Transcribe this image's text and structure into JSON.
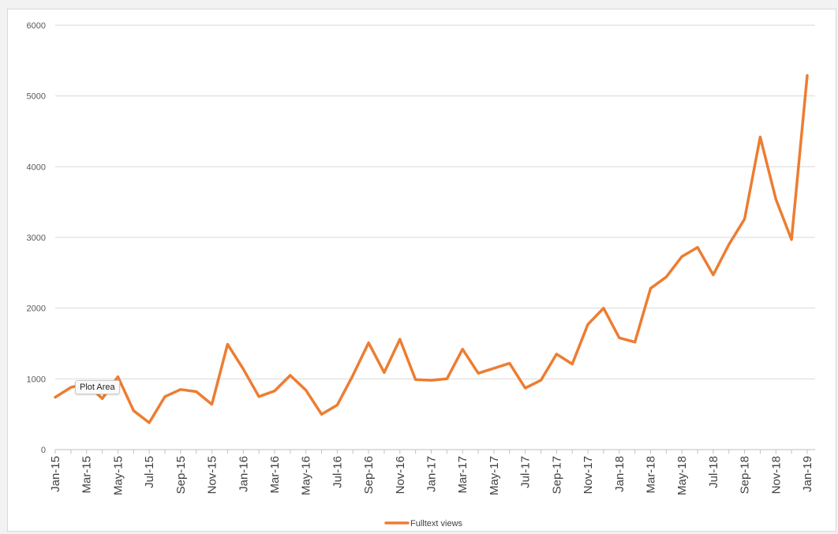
{
  "colors": {
    "line": "#ED7D31",
    "grid": "#d9d9d9",
    "axis": "#bfbfbf"
  },
  "tooltip": {
    "label": "Plot Area"
  },
  "chart_data": {
    "type": "line",
    "title": "",
    "xlabel": "",
    "ylabel": "",
    "ylim": [
      0,
      6000
    ],
    "yticks": [
      0,
      1000,
      2000,
      3000,
      4000,
      5000,
      6000
    ],
    "grid": true,
    "legend_position": "bottom",
    "x": [
      "Jan-15",
      "Feb-15",
      "Mar-15",
      "Apr-15",
      "May-15",
      "Jun-15",
      "Jul-15",
      "Aug-15",
      "Sep-15",
      "Oct-15",
      "Nov-15",
      "Dec-15",
      "Jan-16",
      "Feb-16",
      "Mar-16",
      "Apr-16",
      "May-16",
      "Jun-16",
      "Jul-16",
      "Aug-16",
      "Sep-16",
      "Oct-16",
      "Nov-16",
      "Dec-16",
      "Jan-17",
      "Feb-17",
      "Mar-17",
      "Apr-17",
      "May-17",
      "Jun-17",
      "Jul-17",
      "Aug-17",
      "Sep-17",
      "Oct-17",
      "Nov-17",
      "Dec-17",
      "Jan-18",
      "Feb-18",
      "Mar-18",
      "Apr-18",
      "May-18",
      "Jun-18",
      "Jul-18",
      "Aug-18",
      "Sep-18",
      "Oct-18",
      "Nov-18",
      "Dec-18",
      "Jan-19"
    ],
    "x_tick_labels": [
      "Jan-15",
      "Mar-15",
      "May-15",
      "Jul-15",
      "Sep-15",
      "Nov-15",
      "Jan-16",
      "Mar-16",
      "May-16",
      "Jul-16",
      "Sep-16",
      "Nov-16",
      "Jan-17",
      "Mar-17",
      "May-17",
      "Jul-17",
      "Sep-17",
      "Nov-17",
      "Jan-18",
      "Mar-18",
      "May-18",
      "Jul-18",
      "Sep-18",
      "Nov-18",
      "Jan-19"
    ],
    "series": [
      {
        "name": "Fulltext views",
        "values": [
          740,
          880,
          930,
          720,
          1030,
          550,
          380,
          750,
          850,
          820,
          640,
          1490,
          1140,
          750,
          830,
          1050,
          840,
          500,
          630,
          1050,
          1510,
          1090,
          1560,
          990,
          980,
          1000,
          1420,
          1080,
          1150,
          1220,
          870,
          980,
          1350,
          1210,
          1770,
          2000,
          1580,
          1520,
          2280,
          2440,
          2730,
          2860,
          2470,
          2900,
          3260,
          4420,
          3540,
          2970,
          5290
        ]
      }
    ]
  }
}
